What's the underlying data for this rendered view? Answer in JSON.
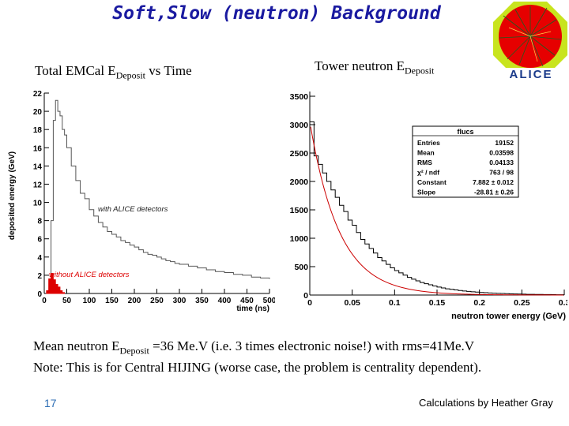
{
  "slide": {
    "title": "Soft,Slow (neutron) Background",
    "left_caption": {
      "main": "Total EMCal E",
      "sub": "Deposit",
      "rest": " vs Time"
    },
    "right_caption": {
      "main": "Tower  neutron E",
      "sub": "Deposit"
    },
    "logo_text": "ALICE",
    "mean_line": {
      "pre": "Mean neutron E",
      "sub": "Deposit",
      "post": " =36 Me.V (i.e. 3 times electronic noise!) with rms=41Me.V"
    },
    "note": "Note: This is for Central HIJING (worse case, the problem is centrality dependent).",
    "page_number": "17",
    "credit": "Calculations by Heather Gray"
  },
  "colors": {
    "title": "#1a1aa0",
    "fit_line": "#cc0000",
    "red_hist": "#dd0000",
    "page_number": "#2f6fb5"
  },
  "chart_data": [
    {
      "type": "line",
      "xlabel": "time (ns)",
      "ylabel": "deposited energy (GeV)",
      "xlim": [
        0,
        500
      ],
      "ylim": [
        0,
        22
      ],
      "xticks": [
        0,
        50,
        100,
        150,
        200,
        250,
        300,
        350,
        400,
        450,
        500
      ],
      "yticks": [
        0,
        2,
        4,
        6,
        8,
        10,
        12,
        14,
        16,
        18,
        20,
        22
      ],
      "grid": false,
      "annotations": [
        "with ALICE detectors",
        "without ALICE detectors"
      ],
      "series": [
        {
          "color": "#555555",
          "x": [
            10,
            15,
            20,
            25,
            30,
            35,
            40,
            45,
            50,
            60,
            70,
            80,
            90,
            100,
            110,
            120,
            130,
            140,
            150,
            160,
            170,
            180,
            190,
            200,
            210,
            220,
            230,
            240,
            250,
            260,
            270,
            280,
            290,
            300,
            320,
            340,
            360,
            380,
            400,
            420,
            440,
            460,
            480,
            500
          ],
          "y": [
            0.5,
            8,
            19,
            21.2,
            20,
            19.5,
            18,
            17.4,
            16,
            14,
            12.4,
            11,
            10.4,
            9.2,
            8.5,
            7.8,
            7.3,
            6.8,
            6.5,
            6.2,
            5.8,
            5.6,
            5.3,
            5.1,
            4.8,
            4.5,
            4.3,
            4.2,
            4.0,
            3.8,
            3.6,
            3.5,
            3.3,
            3.2,
            3.0,
            2.8,
            2.6,
            2.4,
            2.3,
            2.1,
            2.0,
            1.8,
            1.7,
            1.6
          ]
        },
        {
          "color": "#dd0000",
          "x": [
            5,
            10,
            15,
            20,
            25,
            30,
            35,
            40
          ],
          "y": [
            0.3,
            1.6,
            2.2,
            1.5,
            1.0,
            0.7,
            0.3,
            0.1
          ]
        }
      ]
    },
    {
      "type": "bar",
      "xlabel": "neutron tower energy (GeV)",
      "ylabel": "",
      "xlim": [
        0,
        0.3
      ],
      "ylim": [
        0,
        3500
      ],
      "xticks": [
        0,
        0.05,
        0.1,
        0.15,
        0.2,
        0.25,
        0.3
      ],
      "xtick_labels": [
        "0",
        "0.05",
        "0.1",
        "0.15",
        "0.2",
        "0.25",
        "0.3"
      ],
      "yticks": [
        0,
        500,
        1000,
        1500,
        2000,
        2500,
        3000,
        3500
      ],
      "bin_width": 0.005,
      "values": [
        3050,
        2450,
        2300,
        2150,
        2000,
        1850,
        1720,
        1580,
        1470,
        1320,
        1230,
        1100,
        980,
        900,
        820,
        740,
        660,
        600,
        540,
        480,
        430,
        390,
        350,
        310,
        280,
        250,
        220,
        200,
        180,
        160,
        140,
        125,
        110,
        100,
        90,
        80,
        72,
        64,
        58,
        52,
        46,
        41,
        37,
        33,
        30,
        27,
        24,
        21,
        19,
        17,
        15,
        13,
        12,
        11,
        10,
        9,
        8,
        7,
        6,
        5
      ],
      "fit": {
        "type": "exponential",
        "constant": 7.882,
        "slope": -28.81
      },
      "stats_box": {
        "title": "flucs",
        "rows": [
          {
            "label": "Entries",
            "value": "19152"
          },
          {
            "label": "Mean",
            "value": "0.03598"
          },
          {
            "label": "RMS",
            "value": "0.04133"
          },
          {
            "label": "χ² / ndf",
            "value": "763 / 98"
          },
          {
            "label": "Constant",
            "value": "7.882 ±  0.012"
          },
          {
            "label": "Slope",
            "value": "-28.81 ±  0.26"
          }
        ]
      }
    }
  ]
}
